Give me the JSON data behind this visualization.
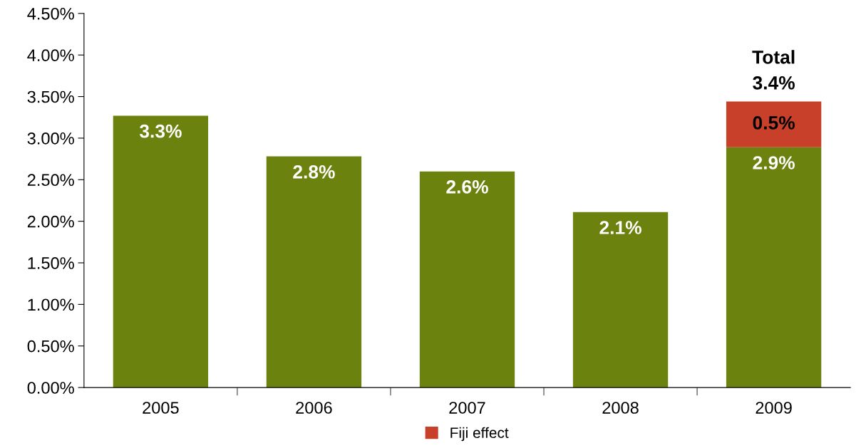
{
  "chart_data": {
    "type": "bar",
    "stacked": true,
    "categories": [
      "2005",
      "2006",
      "2007",
      "2008",
      "2009"
    ],
    "series": [
      {
        "color": "#6b820f",
        "values": [
          3.27,
          2.78,
          2.6,
          2.11,
          2.89
        ],
        "value_labels": [
          "3.3%",
          "2.8%",
          "2.6%",
          "2.1%",
          "2.9%"
        ]
      },
      {
        "name": "Fiji effect",
        "color": "#c8402a",
        "values": [
          null,
          null,
          null,
          null,
          0.55
        ],
        "value_labels": [
          null,
          null,
          null,
          null,
          "0.5%"
        ]
      }
    ],
    "totals": [
      null,
      null,
      null,
      null,
      "Total\n3.4%"
    ],
    "ylim": [
      0,
      4.5
    ],
    "yticks": [
      {
        "value": 0,
        "label": "0.00%"
      },
      {
        "value": 0.5,
        "label": "0.50%"
      },
      {
        "value": 1,
        "label": "1.00%"
      },
      {
        "value": 1.5,
        "label": "1.50%"
      },
      {
        "value": 2,
        "label": "2.00%"
      },
      {
        "value": 2.5,
        "label": "2.50%"
      },
      {
        "value": 3,
        "label": "3.00%"
      },
      {
        "value": 3.5,
        "label": "3.50%"
      },
      {
        "value": 4,
        "label": "4.00%"
      },
      {
        "value": 4.5,
        "label": "4.50%"
      }
    ],
    "grid": false,
    "legend": "bottom"
  }
}
